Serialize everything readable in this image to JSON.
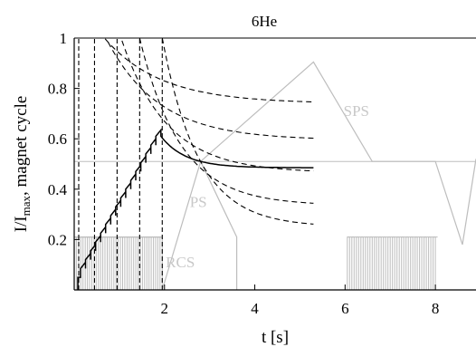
{
  "chart_data": {
    "type": "line",
    "title": "6He",
    "xlabel_parts": [
      "t [s]"
    ],
    "ylabel_parts": [
      "I/I",
      "max",
      ", magnet cycle"
    ],
    "xlim": [
      0.0,
      8.9
    ],
    "ylim": [
      0.0,
      1.0
    ],
    "x_ticks": [
      2,
      4,
      6,
      8
    ],
    "y_ticks": [
      0.2,
      0.4,
      0.6,
      0.8,
      1
    ],
    "grid": false,
    "region_labels": [
      {
        "name": "RCS",
        "x": 2.35,
        "y": 0.09
      },
      {
        "name": "PS",
        "x": 2.75,
        "y": 0.33
      },
      {
        "name": "SPS",
        "x": 6.25,
        "y": 0.69
      }
    ],
    "series": [
      {
        "role": "accumulated-intensity-solid",
        "segments": [
          [
            [
              0.08,
              0.0
            ],
            [
              0.08,
              0.05
            ],
            [
              0.14,
              0.05
            ]
          ],
          {
            "sawtooth": {
              "x_start": 0.14,
              "x_end": 1.92,
              "y_start": 0.05,
              "y_end": 0.61,
              "teeth": 16,
              "drop": 0.025
            }
          },
          {
            "decay": {
              "x_start": 1.92,
              "x_end": 5.3,
              "y0": 0.61,
              "y_inf": 0.485,
              "tau": 0.55
            }
          }
        ]
      },
      {
        "role": "injection-batch-dashed",
        "vertical_lines_x": [
          0.1,
          0.45,
          0.95,
          1.45,
          1.95
        ],
        "decay_curves": [
          {
            "x_start": 0.1,
            "x_end": 5.3,
            "y0": 1.15,
            "y_inf": 0.74,
            "tau": 1.25
          },
          {
            "x_start": 0.45,
            "x_end": 5.3,
            "y0": 1.1,
            "y_inf": 0.595,
            "tau": 1.15
          },
          {
            "x_start": 0.95,
            "x_end": 5.3,
            "y0": 1.05,
            "y_inf": 0.465,
            "tau": 1.0
          },
          {
            "x_start": 1.45,
            "x_end": 5.3,
            "y0": 1.0,
            "y_inf": 0.335,
            "tau": 0.9
          },
          {
            "x_start": 1.95,
            "x_end": 5.3,
            "y0": 1.0,
            "y_inf": 0.25,
            "tau": 0.8
          }
        ]
      },
      {
        "role": "magnet-cycle-gray",
        "ps_cycle": [
          [
            1.95,
            0.0
          ],
          [
            2.8,
            0.51
          ],
          [
            3.6,
            0.21
          ],
          [
            3.6,
            0.0
          ]
        ],
        "sps_cycle": [
          [
            2.8,
            0.51
          ],
          [
            5.3,
            0.905
          ],
          [
            6.6,
            0.51
          ],
          [
            8.0,
            0.51
          ],
          [
            8.6,
            0.18
          ]
        ],
        "sps_right": [
          [
            8.6,
            0.18
          ],
          [
            8.9,
            0.52
          ]
        ],
        "horizontal_line_y": 0.51,
        "rcs_blocks": [
          {
            "x_start": 0.0,
            "x_end": 1.95,
            "y_top": 0.21,
            "pulses": 20
          },
          {
            "x_start": 6.05,
            "x_end": 8.05,
            "y_top": 0.21,
            "pulses": 20
          }
        ],
        "rcs_border_block": [
          [
            0.0,
            0.21
          ],
          [
            1.95,
            0.21
          ],
          [
            1.95,
            0.0
          ]
        ]
      }
    ]
  }
}
